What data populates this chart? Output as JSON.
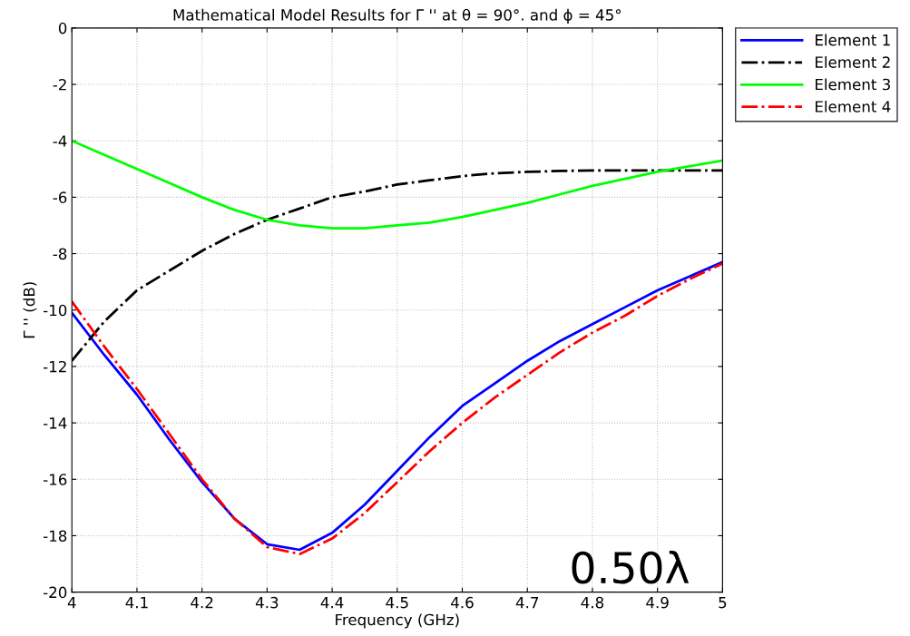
{
  "chart_data": {
    "type": "line",
    "title": "Mathematical Model Results for Γ '' at θ = 90°. and ϕ = 45°",
    "xlabel": "Frequency (GHz)",
    "ylabel": "Γ '' (dB)",
    "x": [
      4.0,
      4.05,
      4.1,
      4.15,
      4.2,
      4.25,
      4.3,
      4.35,
      4.4,
      4.45,
      4.5,
      4.55,
      4.6,
      4.65,
      4.7,
      4.75,
      4.8,
      4.85,
      4.9,
      4.95,
      5.0
    ],
    "series": [
      {
        "name": "Element 1",
        "color": "#0000ff",
        "line_style": "solid",
        "values": [
          -10.1,
          -11.6,
          -13.0,
          -14.6,
          -16.1,
          -17.4,
          -18.3,
          -18.5,
          -17.9,
          -16.9,
          -15.7,
          -14.5,
          -13.4,
          -12.6,
          -11.8,
          -11.1,
          -10.5,
          -9.9,
          -9.3,
          -8.8,
          -8.3
        ]
      },
      {
        "name": "Element 2",
        "color": "#000000",
        "line_style": "dashdot",
        "values": [
          -11.8,
          -10.4,
          -9.3,
          -8.6,
          -7.9,
          -7.3,
          -6.8,
          -6.4,
          -6.0,
          -5.8,
          -5.55,
          -5.4,
          -5.25,
          -5.15,
          -5.1,
          -5.07,
          -5.05,
          -5.05,
          -5.05,
          -5.05,
          -5.05
        ]
      },
      {
        "name": "Element 3",
        "color": "#00ff00",
        "line_style": "solid",
        "values": [
          -4.0,
          -4.5,
          -5.0,
          -5.5,
          -6.0,
          -6.45,
          -6.8,
          -7.0,
          -7.1,
          -7.1,
          -7.0,
          -6.9,
          -6.7,
          -6.45,
          -6.2,
          -5.9,
          -5.6,
          -5.35,
          -5.1,
          -4.9,
          -4.7
        ]
      },
      {
        "name": "Element 4",
        "color": "#ff0000",
        "line_style": "dashdot",
        "values": [
          -9.7,
          -11.3,
          -12.8,
          -14.4,
          -16.0,
          -17.4,
          -18.4,
          -18.65,
          -18.1,
          -17.2,
          -16.1,
          -15.0,
          -14.0,
          -13.1,
          -12.3,
          -11.5,
          -10.8,
          -10.2,
          -9.5,
          -8.9,
          -8.35
        ]
      }
    ],
    "xlim": [
      4,
      5
    ],
    "xticks": [
      4,
      4.1,
      4.2,
      4.3,
      4.4,
      4.5,
      4.6,
      4.7,
      4.8,
      4.9,
      5
    ],
    "ylim": [
      -20,
      0
    ],
    "yticks": [
      -20,
      -18,
      -16,
      -14,
      -12,
      -10,
      -8,
      -6,
      -4,
      -2,
      0
    ],
    "grid": true,
    "legend": "top right",
    "marker": "none",
    "annotations": [
      "0.50λ"
    ]
  }
}
